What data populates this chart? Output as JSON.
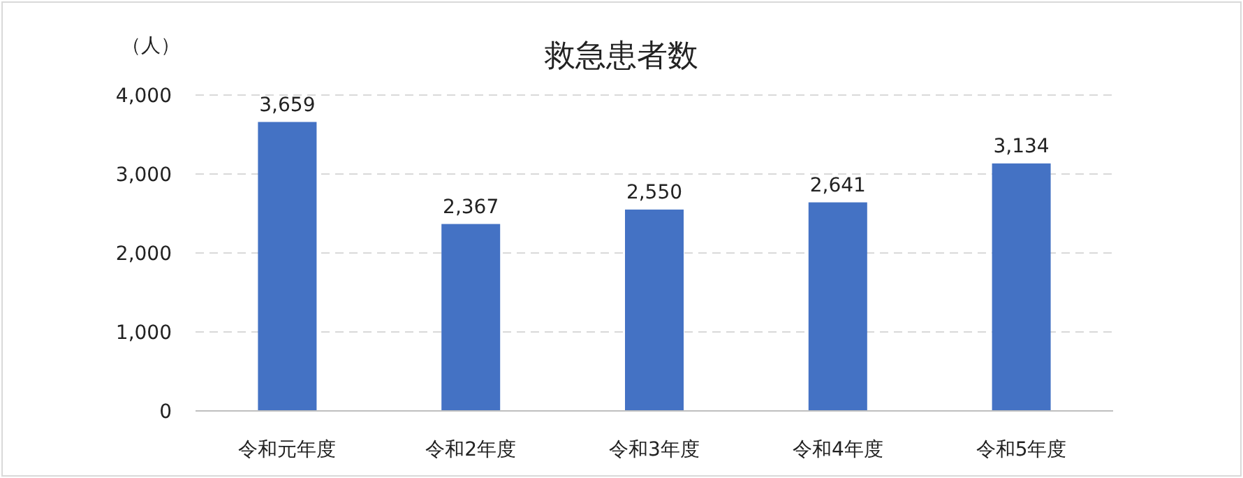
{
  "chart_data": {
    "type": "bar",
    "title": "救急患者数",
    "ylabel": "（人）",
    "categories": [
      "令和元年度",
      "令和2年度",
      "令和3年度",
      "令和4年度",
      "令和5年度"
    ],
    "values": [
      3659,
      2367,
      2550,
      2641,
      3134
    ],
    "value_labels": [
      "3,659",
      "2,367",
      "2,550",
      "2,641",
      "3,134"
    ],
    "color": "#4472c4",
    "ylim": [
      0,
      4000
    ],
    "yticks": [
      {
        "value": 0,
        "label": "0"
      },
      {
        "value": 1000,
        "label": "1,000"
      },
      {
        "value": 2000,
        "label": "2,000"
      },
      {
        "value": 3000,
        "label": "3,000"
      },
      {
        "value": 4000,
        "label": "4,000"
      }
    ],
    "grid": "y"
  }
}
